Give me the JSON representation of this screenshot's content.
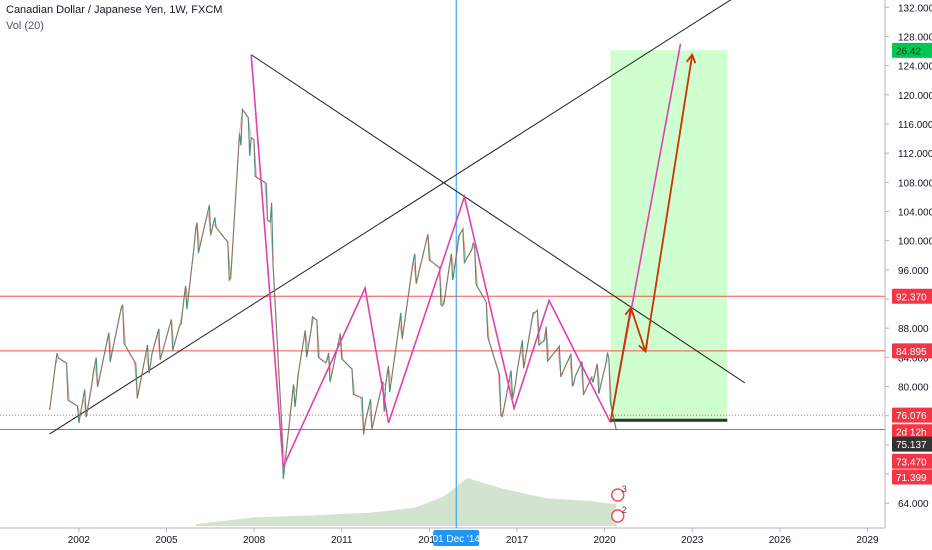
{
  "header": {
    "title": "Canadian Dollar / Japanese Yen, 1W, FXCM",
    "volume_label": "Vol (20)"
  },
  "colors": {
    "price_line": "#ef5350",
    "candle_up": "#26a69a",
    "candle_down": "#ef5350",
    "pattern": "#e040b0",
    "trendline": "#1f1f1f",
    "projection": "#cc3300",
    "target_zone": "#ccffcc",
    "stop_zone": "#f6c7c7",
    "crosshair": "#2196f3",
    "volume": "#c7dcc2"
  },
  "chart_data": {
    "type": "line",
    "title": "Canadian Dollar / Japanese Yen, 1W, FXCM",
    "xlabel": "",
    "ylabel": "",
    "x_range": [
      1999.3,
      2029.6
    ],
    "ylim": [
      60.6,
      133.0
    ],
    "x_ticks": [
      "2002",
      "2005",
      "2008",
      "2011",
      "2014",
      "2017",
      "2020",
      "2023",
      "2026",
      "2029"
    ],
    "y_ticks": [
      "132.000",
      "128.000",
      "124.000",
      "120.000",
      "116.000",
      "112.000",
      "108.000",
      "104.000",
      "100.000",
      "96.000",
      "92.000",
      "88.000",
      "84.000",
      "80.000",
      "76.000",
      "72.000",
      "68.000",
      "64.000"
    ],
    "grid": false,
    "price_path": [
      {
        "x": 2001.0,
        "y": 79.0
      },
      {
        "x": 2001.3,
        "y": 85.0
      },
      {
        "x": 2002.0,
        "y": 75.0
      },
      {
        "x": 2002.5,
        "y": 81.0
      },
      {
        "x": 2003.5,
        "y": 89.0
      },
      {
        "x": 2004.0,
        "y": 80.0
      },
      {
        "x": 2004.5,
        "y": 85.0
      },
      {
        "x": 2005.5,
        "y": 88.0
      },
      {
        "x": 2006.0,
        "y": 100.0
      },
      {
        "x": 2006.7,
        "y": 104.0
      },
      {
        "x": 2007.2,
        "y": 96.0
      },
      {
        "x": 2007.6,
        "y": 118.0
      },
      {
        "x": 2007.9,
        "y": 113.0
      },
      {
        "x": 2008.6,
        "y": 103.0
      },
      {
        "x": 2009.0,
        "y": 69.0
      },
      {
        "x": 2009.5,
        "y": 82.0
      },
      {
        "x": 2010.0,
        "y": 89.0
      },
      {
        "x": 2010.5,
        "y": 82.0
      },
      {
        "x": 2011.0,
        "y": 86.0
      },
      {
        "x": 2011.4,
        "y": 80.0
      },
      {
        "x": 2011.8,
        "y": 75.0
      },
      {
        "x": 2012.5,
        "y": 79.0
      },
      {
        "x": 2013.5,
        "y": 96.0
      },
      {
        "x": 2014.0,
        "y": 99.0
      },
      {
        "x": 2014.5,
        "y": 92.0
      },
      {
        "x": 2015.0,
        "y": 100.0
      },
      {
        "x": 2015.5,
        "y": 98.0
      },
      {
        "x": 2016.0,
        "y": 89.0
      },
      {
        "x": 2016.5,
        "y": 77.0
      },
      {
        "x": 2017.0,
        "y": 82.0
      },
      {
        "x": 2017.6,
        "y": 89.0
      },
      {
        "x": 2018.0,
        "y": 86.0
      },
      {
        "x": 2018.5,
        "y": 83.0
      },
      {
        "x": 2019.0,
        "y": 82.0
      },
      {
        "x": 2019.6,
        "y": 80.0
      },
      {
        "x": 2020.1,
        "y": 83.0
      },
      {
        "x": 2020.4,
        "y": 74.0
      }
    ],
    "pattern_path": [
      {
        "x": 2007.9,
        "y": 125.5
      },
      {
        "x": 2009.0,
        "y": 69.0
      },
      {
        "x": 2011.8,
        "y": 93.5
      },
      {
        "x": 2012.6,
        "y": 75.0
      },
      {
        "x": 2015.2,
        "y": 106.0
      },
      {
        "x": 2016.9,
        "y": 77.0
      },
      {
        "x": 2018.1,
        "y": 91.8
      },
      {
        "x": 2020.2,
        "y": 75.1
      }
    ],
    "pattern_projection": [
      {
        "x": 2020.2,
        "y": 75.1
      },
      {
        "x": 2022.6,
        "y": 127.0
      }
    ],
    "trendlines": [
      {
        "from": {
          "x": 2001.0,
          "y": 73.5
        },
        "to": {
          "x": 2024.7,
          "y": 134.0
        }
      },
      {
        "from": {
          "x": 2007.9,
          "y": 125.5
        },
        "to": {
          "x": 2024.8,
          "y": 80.5
        }
      }
    ],
    "projection_arrows": [
      [
        {
          "x": 2020.2,
          "y": 75.1
        },
        {
          "x": 2020.9,
          "y": 90.8
        }
      ],
      [
        {
          "x": 2020.9,
          "y": 90.8
        },
        {
          "x": 2021.4,
          "y": 84.8
        }
      ],
      [
        {
          "x": 2021.4,
          "y": 84.8
        },
        {
          "x": 2023.0,
          "y": 125.5
        }
      ]
    ],
    "horizontal_levels": [
      {
        "y": 92.37,
        "label": "92.370",
        "style": "solid"
      },
      {
        "y": 84.895,
        "label": "84.895",
        "style": "solid"
      },
      {
        "y": 76.076,
        "label": "76.076",
        "style": "dotted"
      },
      {
        "y": 74.1,
        "label": "",
        "style": "solid"
      }
    ],
    "target_zone": {
      "x_from": 2020.2,
      "x_to": 2024.2,
      "y_from": 75.1,
      "y_to": 126.1
    },
    "stop_zone": {
      "x_from": 2020.2,
      "x_to": 2024.2,
      "y_from": 71.399,
      "y_to": 75.1
    },
    "position_entry": {
      "y": 75.1
    },
    "price_labels": [
      {
        "y": 126.1,
        "text": "26.42",
        "kind": "target"
      },
      {
        "y": 92.37,
        "text": "92.370",
        "kind": "level"
      },
      {
        "y": 84.895,
        "text": "84.895",
        "kind": "level"
      },
      {
        "y": 76.076,
        "text": "76.076",
        "kind": "level"
      },
      {
        "y": 73.8,
        "text": "2d 12h",
        "kind": "countdown"
      },
      {
        "y": 72.1,
        "text": "75.137",
        "kind": "last"
      },
      {
        "y": 69.75,
        "text": "73.470",
        "kind": "level"
      },
      {
        "y": 67.6,
        "text": "71.399",
        "kind": "level"
      }
    ],
    "crosshair": {
      "x": 2014.92,
      "label": "01 Dec '14"
    },
    "volume_hump": [
      {
        "x": 2006.0,
        "v": 0.04
      },
      {
        "x": 2008.0,
        "v": 0.18
      },
      {
        "x": 2010.0,
        "v": 0.22
      },
      {
        "x": 2012.0,
        "v": 0.28
      },
      {
        "x": 2013.5,
        "v": 0.38
      },
      {
        "x": 2014.5,
        "v": 0.62
      },
      {
        "x": 2015.3,
        "v": 1.0
      },
      {
        "x": 2016.5,
        "v": 0.78
      },
      {
        "x": 2018.0,
        "v": 0.58
      },
      {
        "x": 2019.5,
        "v": 0.52
      },
      {
        "x": 2020.4,
        "v": 0.45
      }
    ],
    "event_markers": [
      {
        "x": 2020.45,
        "text": "3"
      },
      {
        "x": 2020.45,
        "text": "2"
      }
    ]
  }
}
